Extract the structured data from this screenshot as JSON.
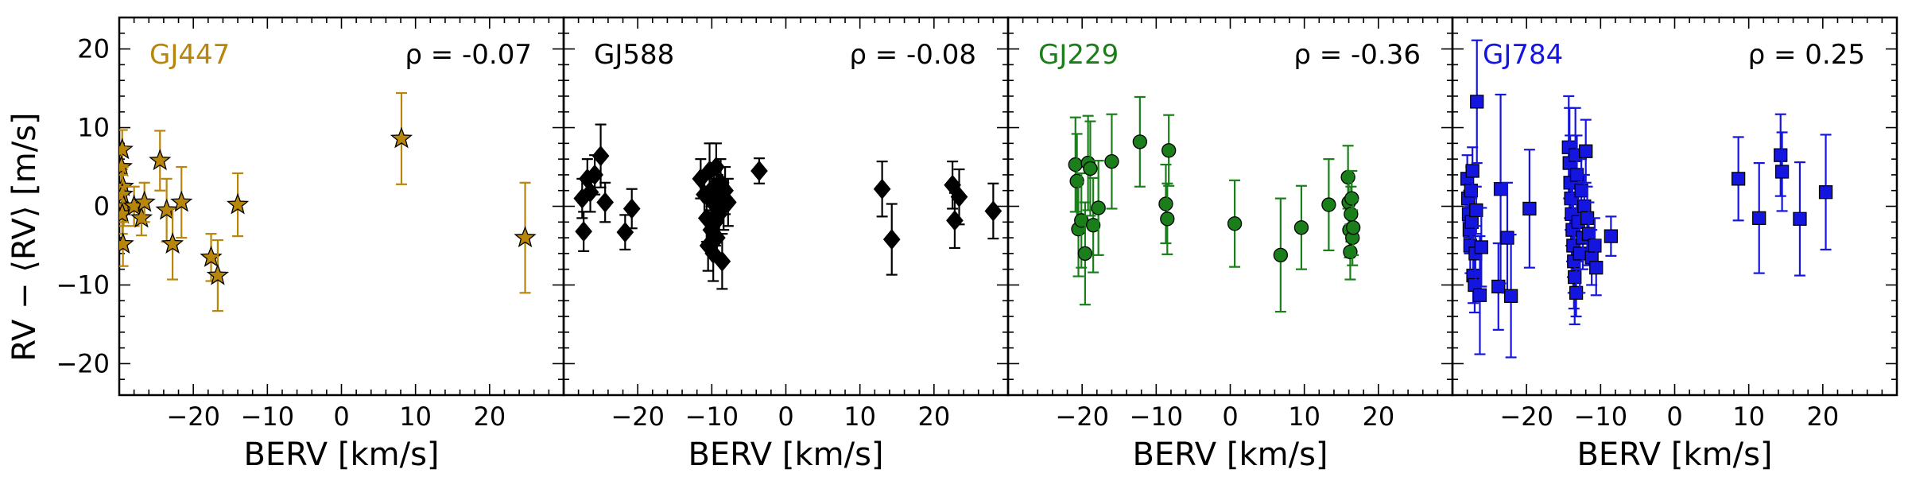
{
  "chart_data": {
    "type": "scatter",
    "ylabel": "RV − ⟨RV⟩ [m/s]",
    "xlabel": "BERV [km/s]",
    "xlim": [
      -30,
      30
    ],
    "ylim": [
      -24,
      24
    ],
    "xticks": [
      -20,
      -10,
      0,
      10,
      20
    ],
    "yticks": [
      -20,
      -10,
      0,
      10,
      20
    ],
    "panels": [
      {
        "name": "GJ447",
        "color": "#b8860b",
        "marker": "star",
        "rho": "ρ = -0.07",
        "points": [
          {
            "x": -29.6,
            "y": 7.2,
            "err": 2.5
          },
          {
            "x": -29.7,
            "y": 5.0,
            "err": 2.5
          },
          {
            "x": -29.5,
            "y": 2.5,
            "err": 2.5
          },
          {
            "x": -29.6,
            "y": 1.5,
            "err": 2.5
          },
          {
            "x": -29.4,
            "y": 0.0,
            "err": 2.5
          },
          {
            "x": -29.6,
            "y": -1.0,
            "err": 2.5
          },
          {
            "x": -29.5,
            "y": -4.8,
            "err": 2.8
          },
          {
            "x": -28.0,
            "y": 0.0,
            "err": 2.5
          },
          {
            "x": -27.0,
            "y": -1.5,
            "err": 2.2
          },
          {
            "x": -26.6,
            "y": 0.5,
            "err": 2.5
          },
          {
            "x": -24.5,
            "y": 5.8,
            "err": 3.8
          },
          {
            "x": -23.6,
            "y": -0.5,
            "err": 4.0
          },
          {
            "x": -22.8,
            "y": -4.8,
            "err": 4.5
          },
          {
            "x": -21.6,
            "y": 0.5,
            "err": 4.5
          },
          {
            "x": -17.6,
            "y": -6.5,
            "err": 3.0
          },
          {
            "x": -16.7,
            "y": -8.8,
            "err": 4.5
          },
          {
            "x": -14.0,
            "y": 0.2,
            "err": 4.0
          },
          {
            "x": 8.1,
            "y": 8.6,
            "err": 5.8
          },
          {
            "x": 24.8,
            "y": -4.0,
            "err": 7.0
          }
        ]
      },
      {
        "name": "GJ588",
        "color": "#000000",
        "marker": "diamond",
        "rho": "ρ = -0.08",
        "points": [
          {
            "x": -27.5,
            "y": 1.0,
            "err": 2.5
          },
          {
            "x": -27.3,
            "y": -3.2,
            "err": 2.5
          },
          {
            "x": -26.8,
            "y": 3.5,
            "err": 2.5
          },
          {
            "x": -26.4,
            "y": 1.8,
            "err": 2.5
          },
          {
            "x": -25.8,
            "y": 4.0,
            "err": 2.5
          },
          {
            "x": -25.0,
            "y": 6.4,
            "err": 4.0
          },
          {
            "x": -24.4,
            "y": 0.5,
            "err": 2.5
          },
          {
            "x": -21.7,
            "y": -3.3,
            "err": 2.2
          },
          {
            "x": -20.8,
            "y": -0.3,
            "err": 2.5
          },
          {
            "x": -11.5,
            "y": 3.5,
            "err": 2.5
          },
          {
            "x": -11.0,
            "y": 1.5,
            "err": 3.0
          },
          {
            "x": -10.7,
            "y": -1.5,
            "err": 3.0
          },
          {
            "x": -10.5,
            "y": -5.0,
            "err": 3.2
          },
          {
            "x": -10.3,
            "y": 4.5,
            "err": 3.5
          },
          {
            "x": -10.1,
            "y": -3.0,
            "err": 3.0
          },
          {
            "x": -9.9,
            "y": 0.5,
            "err": 3.0
          },
          {
            "x": -9.8,
            "y": -6.0,
            "err": 3.5
          },
          {
            "x": -9.7,
            "y": 2.5,
            "err": 3.0
          },
          {
            "x": -9.5,
            "y": -2.0,
            "err": 3.0
          },
          {
            "x": -9.4,
            "y": 5.0,
            "err": 3.0
          },
          {
            "x": -9.3,
            "y": -4.0,
            "err": 3.0
          },
          {
            "x": -9.2,
            "y": 1.0,
            "err": 3.0
          },
          {
            "x": -9.0,
            "y": -1.0,
            "err": 3.0
          },
          {
            "x": -8.8,
            "y": 3.0,
            "err": 3.0
          },
          {
            "x": -8.6,
            "y": -7.0,
            "err": 3.5
          },
          {
            "x": -8.4,
            "y": 0.0,
            "err": 3.0
          },
          {
            "x": -8.2,
            "y": 2.0,
            "err": 3.0
          },
          {
            "x": -7.8,
            "y": 0.5,
            "err": 3.0
          },
          {
            "x": -3.6,
            "y": 4.5,
            "err": 1.6
          },
          {
            "x": 13.0,
            "y": 2.2,
            "err": 3.5
          },
          {
            "x": 14.3,
            "y": -4.2,
            "err": 4.5
          },
          {
            "x": 22.5,
            "y": 2.7,
            "err": 3.0
          },
          {
            "x": 22.8,
            "y": -1.8,
            "err": 3.5
          },
          {
            "x": 23.4,
            "y": 1.2,
            "err": 3.5
          },
          {
            "x": 28.0,
            "y": -0.6,
            "err": 3.5
          }
        ]
      },
      {
        "name": "GJ229",
        "color": "#1a7f1a",
        "marker": "circle",
        "rho": "ρ = -0.36",
        "points": [
          {
            "x": -20.9,
            "y": 5.3,
            "err": 6.0
          },
          {
            "x": -20.7,
            "y": 3.2,
            "err": 6.0
          },
          {
            "x": -20.5,
            "y": -2.9,
            "err": 6.0
          },
          {
            "x": -20.1,
            "y": -1.8,
            "err": 6.0
          },
          {
            "x": -19.6,
            "y": -6.0,
            "err": 6.5
          },
          {
            "x": -19.2,
            "y": 5.5,
            "err": 6.0
          },
          {
            "x": -18.9,
            "y": 4.8,
            "err": 6.0
          },
          {
            "x": -18.5,
            "y": -2.4,
            "err": 6.0
          },
          {
            "x": -17.8,
            "y": -0.2,
            "err": 6.0
          },
          {
            "x": -16.0,
            "y": 5.7,
            "err": 6.0
          },
          {
            "x": -12.2,
            "y": 8.2,
            "err": 5.7
          },
          {
            "x": -8.7,
            "y": 0.3,
            "err": 5.0
          },
          {
            "x": -8.5,
            "y": -1.6,
            "err": 4.5
          },
          {
            "x": -8.3,
            "y": 7.1,
            "err": 4.5
          },
          {
            "x": 0.6,
            "y": -2.2,
            "err": 5.5
          },
          {
            "x": 6.8,
            "y": -6.2,
            "err": 7.2
          },
          {
            "x": 9.6,
            "y": -2.7,
            "err": 5.3
          },
          {
            "x": 13.3,
            "y": 0.2,
            "err": 5.8
          },
          {
            "x": 15.9,
            "y": 3.7,
            "err": 4.0
          },
          {
            "x": 16.0,
            "y": 0.5,
            "err": 3.5
          },
          {
            "x": 16.1,
            "y": -3.0,
            "err": 3.5
          },
          {
            "x": 16.2,
            "y": -5.8,
            "err": 3.5
          },
          {
            "x": 16.3,
            "y": -1.0,
            "err": 3.5
          },
          {
            "x": 16.4,
            "y": 1.0,
            "err": 3.5
          },
          {
            "x": 16.5,
            "y": -4.0,
            "err": 3.5
          },
          {
            "x": 16.6,
            "y": -2.7,
            "err": 3.5
          }
        ]
      },
      {
        "name": "GJ784",
        "color": "#1515e0",
        "marker": "square",
        "rho": "ρ = 0.25",
        "points": [
          {
            "x": -28.0,
            "y": 3.5,
            "err": 3.0
          },
          {
            "x": -27.9,
            "y": 1.0,
            "err": 3.0
          },
          {
            "x": -27.8,
            "y": -1.0,
            "err": 3.0
          },
          {
            "x": -27.7,
            "y": -3.0,
            "err": 3.0
          },
          {
            "x": -27.6,
            "y": -5.0,
            "err": 3.5
          },
          {
            "x": -27.5,
            "y": 2.0,
            "err": 3.0
          },
          {
            "x": -27.4,
            "y": -2.0,
            "err": 3.0
          },
          {
            "x": -27.3,
            "y": 4.5,
            "err": 3.0
          },
          {
            "x": -27.2,
            "y": -8.8,
            "err": 3.5
          },
          {
            "x": -27.0,
            "y": -10.0,
            "err": 3.5
          },
          {
            "x": -26.9,
            "y": -6.0,
            "err": 3.5
          },
          {
            "x": -26.8,
            "y": -0.5,
            "err": 3.0
          },
          {
            "x": -26.7,
            "y": 13.3,
            "err": 7.8
          },
          {
            "x": -26.3,
            "y": -11.3,
            "err": 7.5
          },
          {
            "x": -26.1,
            "y": -5.2,
            "err": 5.0
          },
          {
            "x": -23.8,
            "y": -10.2,
            "err": 5.5
          },
          {
            "x": -23.5,
            "y": 2.2,
            "err": 12.0
          },
          {
            "x": -22.6,
            "y": -4.0,
            "err": 7.0
          },
          {
            "x": -22.1,
            "y": -11.4,
            "err": 7.8
          },
          {
            "x": -19.6,
            "y": -0.3,
            "err": 7.5
          },
          {
            "x": -14.3,
            "y": 7.5,
            "err": 6.5
          },
          {
            "x": -14.2,
            "y": 5.5,
            "err": 7.0
          },
          {
            "x": -14.1,
            "y": 3.0,
            "err": 6.0
          },
          {
            "x": -14.0,
            "y": 1.0,
            "err": 6.0
          },
          {
            "x": -13.9,
            "y": -1.0,
            "err": 6.0
          },
          {
            "x": -13.8,
            "y": -3.0,
            "err": 6.0
          },
          {
            "x": -13.7,
            "y": -5.0,
            "err": 6.0
          },
          {
            "x": -13.6,
            "y": -7.0,
            "err": 6.0
          },
          {
            "x": -13.5,
            "y": -9.0,
            "err": 6.0
          },
          {
            "x": -13.4,
            "y": 6.5,
            "err": 6.0
          },
          {
            "x": -13.3,
            "y": -11.0,
            "err": 3.0
          },
          {
            "x": -13.2,
            "y": 4.0,
            "err": 5.0
          },
          {
            "x": -13.0,
            "y": -2.0,
            "err": 5.0
          },
          {
            "x": -12.8,
            "y": -6.0,
            "err": 5.0
          },
          {
            "x": -12.6,
            "y": 2.0,
            "err": 4.0
          },
          {
            "x": -12.4,
            "y": -4.0,
            "err": 4.0
          },
          {
            "x": -12.2,
            "y": 0.0,
            "err": 4.0
          },
          {
            "x": -12.0,
            "y": 7.0,
            "err": 4.0
          },
          {
            "x": -11.8,
            "y": -1.5,
            "err": 4.0
          },
          {
            "x": -11.6,
            "y": -3.5,
            "err": 4.0
          },
          {
            "x": -11.2,
            "y": -6.5,
            "err": 3.5
          },
          {
            "x": -10.8,
            "y": -5.0,
            "err": 3.5
          },
          {
            "x": -10.6,
            "y": -7.8,
            "err": 3.5
          },
          {
            "x": -8.6,
            "y": -3.8,
            "err": 2.5
          },
          {
            "x": 8.6,
            "y": 3.5,
            "err": 5.3
          },
          {
            "x": 11.4,
            "y": -1.5,
            "err": 7.0
          },
          {
            "x": 14.3,
            "y": 6.5,
            "err": 5.2
          },
          {
            "x": 14.5,
            "y": 4.4,
            "err": 5.0
          },
          {
            "x": 16.9,
            "y": -1.6,
            "err": 7.2
          },
          {
            "x": 20.4,
            "y": 1.8,
            "err": 7.3
          }
        ]
      }
    ]
  }
}
